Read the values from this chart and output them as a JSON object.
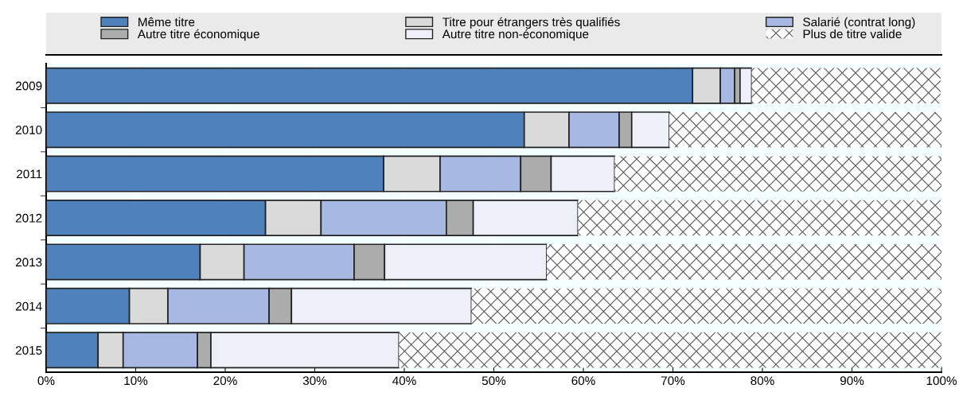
{
  "chart_data": {
    "type": "bar",
    "orientation": "horizontal",
    "stacked": true,
    "categories": [
      "2009",
      "2010",
      "2011",
      "2012",
      "2013",
      "2014",
      "2015"
    ],
    "series": [
      {
        "name": "Même titre",
        "color": "#4f81bd",
        "values": [
          72.2,
          53.4,
          37.7,
          24.5,
          17.2,
          9.3,
          5.8
        ]
      },
      {
        "name": "Titre pour étrangers très qualifiés",
        "color": "#dadada",
        "values": [
          3.1,
          5.0,
          6.3,
          6.2,
          4.9,
          4.3,
          2.8
        ]
      },
      {
        "name": "Salarié (contrat long)",
        "color": "#a7b8e2",
        "values": [
          1.6,
          5.6,
          9.0,
          14.0,
          12.3,
          11.3,
          8.3
        ]
      },
      {
        "name": "Autre titre économique",
        "color": "#acacac",
        "values": [
          0.6,
          1.4,
          3.4,
          3.0,
          3.4,
          2.5,
          1.5
        ]
      },
      {
        "name": "Autre titre non-économique",
        "color": "#edf0f8",
        "values": [
          1.3,
          4.2,
          7.1,
          11.7,
          18.1,
          20.1,
          21.0
        ]
      },
      {
        "name": "Plus de titre valide",
        "color": "#ffffff",
        "values": [
          21.1,
          30.4,
          36.5,
          40.6,
          44.1,
          52.5,
          60.6
        ]
      }
    ],
    "xlim": [
      0,
      100
    ],
    "xticks": [
      {
        "value": 0,
        "label": "0%"
      },
      {
        "value": 10,
        "label": "10%"
      },
      {
        "value": 20,
        "label": "20%"
      },
      {
        "value": 30,
        "label": "30%"
      },
      {
        "value": 40,
        "label": "40%"
      },
      {
        "value": 50,
        "label": "50%"
      },
      {
        "value": 60,
        "label": "60%"
      },
      {
        "value": 70,
        "label": "70%"
      },
      {
        "value": 80,
        "label": "80%"
      },
      {
        "value": 90,
        "label": "90%"
      },
      {
        "value": 100,
        "label": "100%"
      }
    ],
    "grid": "x",
    "legend": "top"
  }
}
